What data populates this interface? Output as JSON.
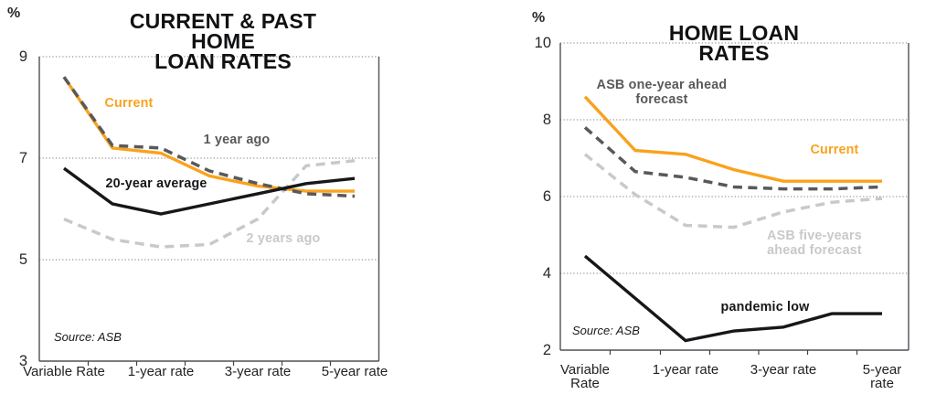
{
  "page": {
    "background": "#ffffff",
    "accent_orange": "#F9A21D",
    "dark_gray": "#58595B",
    "light_gray": "#C8C9CB",
    "line_black": "#161718"
  },
  "chart_data": [
    {
      "type": "line",
      "title": "CURRENT & PAST HOME\nLOAN RATES",
      "y_unit": "%",
      "source": "Source: ASB",
      "ylim": [
        3,
        9
      ],
      "yticks": [
        9,
        7,
        5,
        3
      ],
      "gridlines": [
        9,
        7,
        5
      ],
      "grid_style": "dotted-horizontal",
      "legend_position": "labels-on-chart",
      "categories": [
        "Variable Rate",
        "",
        "1-year rate",
        "",
        "3-year rate",
        "",
        "5-year rate"
      ],
      "series": [
        {
          "name": "2 years ago",
          "label": "2 years ago",
          "color": "#C8C9CB",
          "style": "dashed",
          "values": [
            5.8,
            5.4,
            5.25,
            5.3,
            5.8,
            6.85,
            6.95
          ]
        },
        {
          "name": "Current",
          "label": "Current",
          "color": "#F9A21D",
          "style": "solid",
          "values": [
            8.6,
            7.2,
            7.1,
            6.65,
            6.45,
            6.35,
            6.35
          ]
        },
        {
          "name": "1 year ago",
          "label": "1 year ago",
          "color": "#58595B",
          "style": "dashed",
          "values": [
            8.6,
            7.25,
            7.2,
            6.75,
            6.5,
            6.3,
            6.25
          ]
        },
        {
          "name": "20-year average",
          "label": "20-year average",
          "color": "#161718",
          "style": "solid",
          "values": [
            6.8,
            6.1,
            5.9,
            6.1,
            6.3,
            6.5,
            6.6
          ]
        }
      ]
    },
    {
      "type": "line",
      "title": "HOME LOAN RATES",
      "y_unit": "%",
      "source": "Source: ASB",
      "ylim": [
        2,
        10
      ],
      "yticks": [
        10,
        8,
        6,
        4,
        2
      ],
      "gridlines": [
        10,
        8,
        6,
        4
      ],
      "grid_style": "dotted-horizontal",
      "legend_position": "labels-on-chart",
      "categories": [
        "Variable Rate",
        "",
        "1-year rate",
        "",
        "3-year rate",
        "",
        "5-year rate"
      ],
      "series": [
        {
          "name": "ASB five-years ahead forecast",
          "label": "ASB five-years\nahead forecast",
          "color": "#C8C9CB",
          "style": "dashed",
          "values": [
            7.1,
            6.05,
            5.25,
            5.2,
            5.6,
            5.85,
            5.95
          ]
        },
        {
          "name": "ASB one-year ahead forecast",
          "label": "ASB one-year ahead\nforecast",
          "color": "#58595B",
          "style": "dashed",
          "values": [
            7.8,
            6.65,
            6.5,
            6.25,
            6.2,
            6.2,
            6.25
          ]
        },
        {
          "name": "Current",
          "label": "Current",
          "color": "#F9A21D",
          "style": "solid",
          "values": [
            8.6,
            7.2,
            7.1,
            6.7,
            6.4,
            6.4,
            6.4
          ]
        },
        {
          "name": "pandemic low",
          "label": "pandemic low",
          "color": "#161718",
          "style": "solid",
          "values": [
            4.45,
            3.35,
            2.25,
            2.5,
            2.6,
            2.95,
            2.95
          ]
        }
      ]
    }
  ]
}
